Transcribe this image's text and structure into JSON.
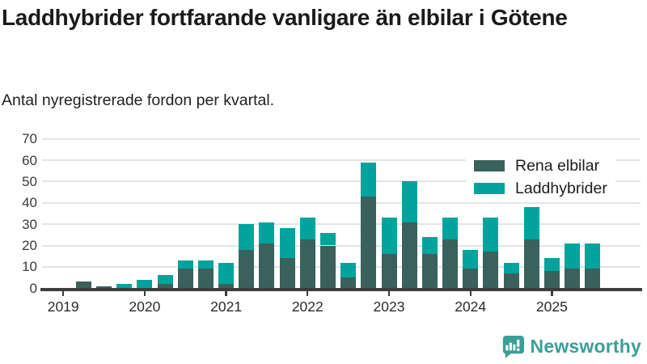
{
  "header": {
    "title": "Laddhybrider fortfarande vanligare än elbilar i Götene",
    "subtitle": "Antal nyregistrerade fordon per kvartal."
  },
  "chart_data": {
    "type": "bar",
    "stacked": true,
    "title": "Laddhybrider fortfarande vanligare än elbilar i Götene",
    "subtitle": "Antal nyregistrerade fordon per kvartal.",
    "categories": [
      "2019 Q1",
      "2019 Q2",
      "2019 Q3",
      "2019 Q4",
      "2020 Q1",
      "2020 Q2",
      "2020 Q3",
      "2020 Q4",
      "2021 Q1",
      "2021 Q2",
      "2021 Q3",
      "2021 Q4",
      "2022 Q1",
      "2022 Q2",
      "2022 Q3",
      "2022 Q4",
      "2023 Q1",
      "2023 Q2",
      "2023 Q3",
      "2023 Q4",
      "2024 Q1",
      "2024 Q2",
      "2024 Q3",
      "2024 Q4",
      "2025 Q1",
      "2025 Q2",
      "2025 Q3"
    ],
    "series": [
      {
        "name": "Rena elbilar",
        "color": "#3a615c",
        "values": [
          0,
          3,
          1,
          0,
          0,
          2,
          9,
          9,
          2,
          18,
          21,
          14,
          23,
          20,
          5,
          43,
          16,
          31,
          16,
          23,
          9,
          17,
          7,
          23,
          8,
          9,
          9
        ]
      },
      {
        "name": "Laddhybrider",
        "color": "#00a49c",
        "values": [
          0,
          0,
          0,
          2,
          4,
          4,
          4,
          4,
          10,
          12,
          10,
          14,
          10,
          6,
          7,
          16,
          17,
          19,
          8,
          10,
          9,
          16,
          5,
          15,
          6,
          12,
          12
        ]
      }
    ],
    "x_tick_labels": [
      "2019",
      "2020",
      "2021",
      "2022",
      "2023",
      "2024",
      "2025"
    ],
    "ylim": [
      0,
      70
    ],
    "yticks": [
      0,
      10,
      20,
      30,
      40,
      50,
      60,
      70
    ],
    "grid": "horizontal",
    "legend_position": "top-right"
  },
  "footer": {
    "brand": "Newsworthy"
  },
  "colors": {
    "dark_series": "#3a615c",
    "teal_series": "#00a49c",
    "gridline": "#e4e4e4",
    "axis": "#3d3d3d",
    "brand": "#3b9f98"
  }
}
